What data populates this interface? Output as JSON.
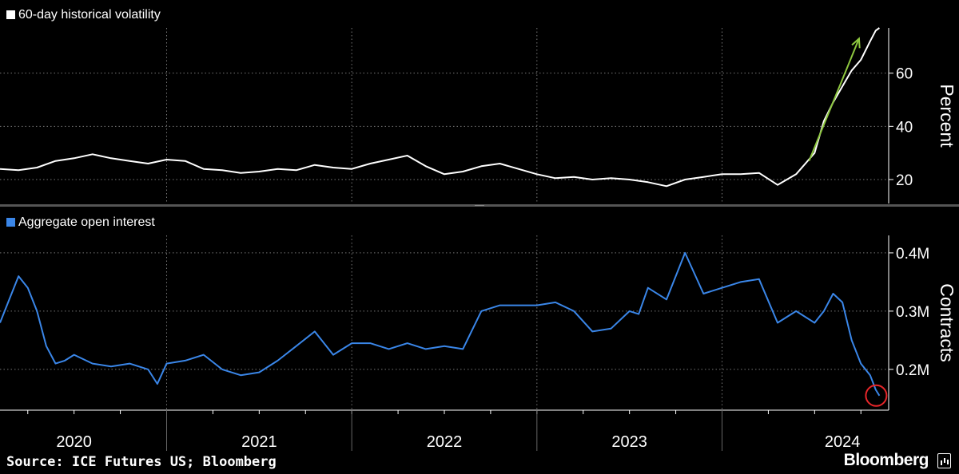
{
  "source_text": "Source: ICE Futures US; Bloomberg",
  "brand": "Bloomberg",
  "colors": {
    "volatility": "#ffffff",
    "open_interest": "#3a86e8",
    "arrow": "#8dc63f",
    "marker": "#e8262a"
  },
  "chart_data": [
    {
      "type": "line",
      "legend": "60-day historical volatility",
      "ylabel": "Percent",
      "ylim": [
        11,
        77
      ],
      "yticks": [
        20,
        40,
        60
      ],
      "ytick_labels": [
        "20",
        "40",
        "60"
      ],
      "xlim": [
        2019.6,
        2024.4
      ],
      "annotation": "green-arrow",
      "series": [
        {
          "x": [
            2019.6,
            2019.7,
            2019.8,
            2019.9,
            2020.0,
            2020.1,
            2020.2,
            2020.3,
            2020.4,
            2020.5,
            2020.6,
            2020.7,
            2020.8,
            2020.9,
            2021.0,
            2021.1,
            2021.2,
            2021.3,
            2021.4,
            2021.5,
            2021.6,
            2021.7,
            2021.8,
            2021.9,
            2022.0,
            2022.1,
            2022.2,
            2022.3,
            2022.4,
            2022.5,
            2022.6,
            2022.7,
            2022.8,
            2022.9,
            2023.0,
            2023.1,
            2023.2,
            2023.3,
            2023.4,
            2023.5,
            2023.6,
            2023.7,
            2023.8,
            2023.9,
            2024.0,
            2024.05,
            2024.1,
            2024.15,
            2024.2,
            2024.25,
            2024.3,
            2024.33,
            2024.35
          ],
          "y": [
            24,
            23.5,
            24.5,
            27,
            28,
            29.5,
            28,
            27,
            26,
            27.5,
            27,
            24,
            23.5,
            22.5,
            23,
            24,
            23.5,
            25.5,
            24.5,
            24,
            26,
            27.5,
            29,
            25,
            22,
            23,
            25,
            26,
            24,
            22,
            20.5,
            21,
            20,
            20.5,
            20,
            19,
            17.5,
            20,
            21,
            22,
            22,
            22.5,
            18,
            22,
            30,
            42,
            49,
            55,
            61,
            65,
            72,
            76,
            77
          ]
        }
      ]
    },
    {
      "type": "line",
      "legend": "Aggregate open interest",
      "ylabel": "Contracts",
      "ylim": [
        0.13,
        0.43
      ],
      "yticks": [
        0.2,
        0.3,
        0.4
      ],
      "ytick_labels": [
        "0.2M",
        "0.3M",
        "0.4M"
      ],
      "xlim": [
        2019.6,
        2024.4
      ],
      "xtick_labels": [
        "2020",
        "2021",
        "2022",
        "2023",
        "2024"
      ],
      "annotation": "red-circle",
      "series": [
        {
          "x": [
            2019.6,
            2019.65,
            2019.7,
            2019.75,
            2019.8,
            2019.85,
            2019.9,
            2019.95,
            2020.0,
            2020.1,
            2020.2,
            2020.3,
            2020.4,
            2020.45,
            2020.5,
            2020.6,
            2020.7,
            2020.8,
            2020.9,
            2021.0,
            2021.1,
            2021.2,
            2021.3,
            2021.4,
            2021.5,
            2021.6,
            2021.7,
            2021.8,
            2021.9,
            2022.0,
            2022.1,
            2022.2,
            2022.3,
            2022.4,
            2022.5,
            2022.6,
            2022.7,
            2022.8,
            2022.9,
            2023.0,
            2023.05,
            2023.1,
            2023.2,
            2023.3,
            2023.4,
            2023.5,
            2023.6,
            2023.7,
            2023.8,
            2023.9,
            2024.0,
            2024.05,
            2024.1,
            2024.15,
            2024.2,
            2024.25,
            2024.3,
            2024.33,
            2024.35
          ],
          "y": [
            0.28,
            0.32,
            0.36,
            0.34,
            0.3,
            0.24,
            0.21,
            0.215,
            0.225,
            0.21,
            0.205,
            0.21,
            0.2,
            0.175,
            0.21,
            0.215,
            0.225,
            0.2,
            0.19,
            0.195,
            0.215,
            0.24,
            0.265,
            0.225,
            0.245,
            0.245,
            0.235,
            0.245,
            0.235,
            0.24,
            0.235,
            0.3,
            0.31,
            0.31,
            0.31,
            0.315,
            0.3,
            0.265,
            0.27,
            0.3,
            0.295,
            0.34,
            0.32,
            0.4,
            0.33,
            0.34,
            0.35,
            0.355,
            0.28,
            0.3,
            0.28,
            0.3,
            0.33,
            0.315,
            0.25,
            0.21,
            0.19,
            0.165,
            0.155
          ]
        }
      ]
    }
  ]
}
